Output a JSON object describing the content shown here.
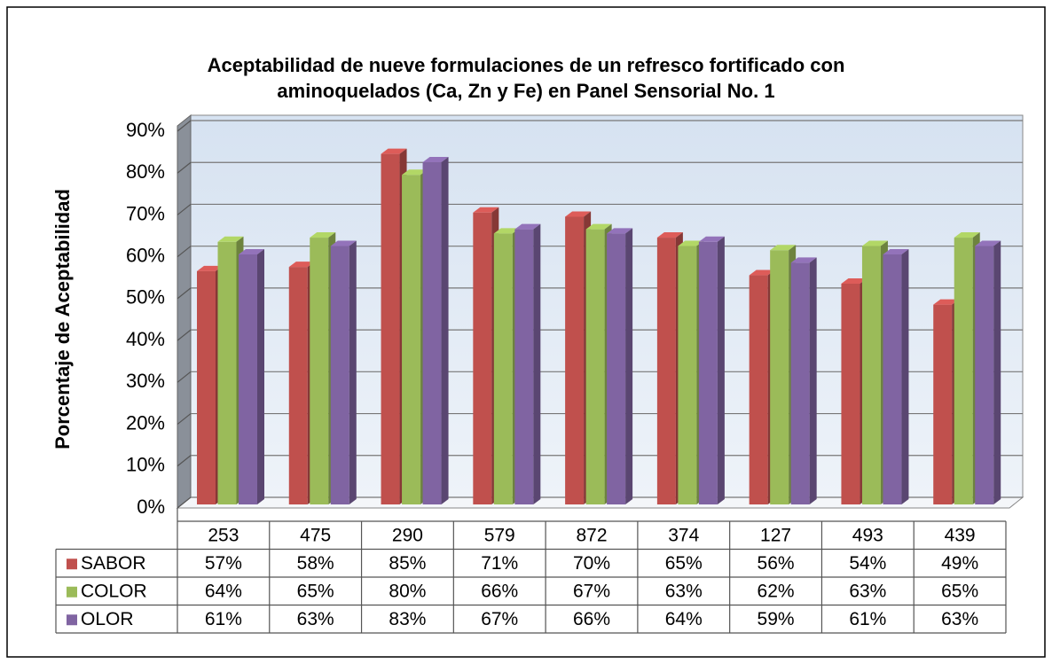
{
  "chart_data": {
    "type": "bar3d",
    "title": [
      "Aceptabilidad de nueve formulaciones de un refresco fortificado con",
      "aminoquelados (Ca, Zn y Fe) en Panel Sensorial No. 1"
    ],
    "y_label": "Porcentaje de Aceptabilidad",
    "categories": [
      "253",
      "475",
      "290",
      "579",
      "872",
      "374",
      "127",
      "493",
      "439"
    ],
    "series": [
      {
        "name": "SABOR",
        "color": "#c0504d",
        "values": [
          57,
          58,
          85,
          71,
          70,
          65,
          56,
          54,
          49
        ],
        "value_labels": [
          "57%",
          "58%",
          "85%",
          "71%",
          "70%",
          "65%",
          "56%",
          "54%",
          "49%"
        ]
      },
      {
        "name": "COLOR",
        "color": "#9bbb59",
        "values": [
          64,
          65,
          80,
          66,
          67,
          63,
          62,
          63,
          65
        ],
        "value_labels": [
          "64%",
          "65%",
          "80%",
          "66%",
          "67%",
          "63%",
          "62%",
          "63%",
          "65%"
        ]
      },
      {
        "name": "OLOR",
        "color": "#8064a2",
        "values": [
          61,
          63,
          83,
          67,
          66,
          64,
          59,
          61,
          63
        ],
        "value_labels": [
          "61%",
          "63%",
          "83%",
          "67%",
          "66%",
          "64%",
          "59%",
          "61%",
          "63%"
        ]
      }
    ],
    "ylim": [
      0,
      90
    ],
    "yticks": [
      {
        "value": 0,
        "label": "0%"
      },
      {
        "value": 10,
        "label": "10%"
      },
      {
        "value": 20,
        "label": "20%"
      },
      {
        "value": 30,
        "label": "30%"
      },
      {
        "value": 40,
        "label": "40%"
      },
      {
        "value": 50,
        "label": "50%"
      },
      {
        "value": 60,
        "label": "60%"
      },
      {
        "value": 70,
        "label": "70%"
      },
      {
        "value": 80,
        "label": "80%"
      },
      {
        "value": 90,
        "label": "90%"
      }
    ],
    "grid": true
  }
}
